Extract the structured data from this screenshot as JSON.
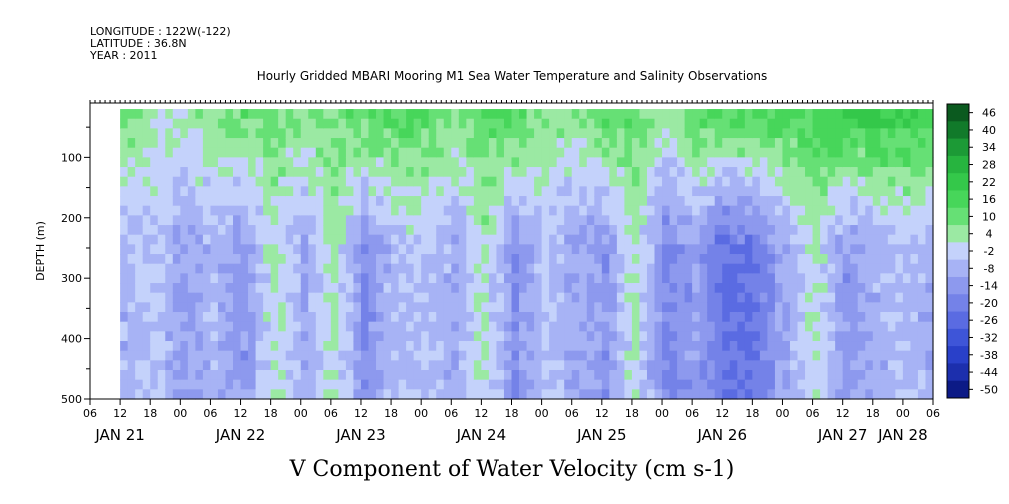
{
  "header": {
    "longitude": "LONGITUDE : 122W(-122)",
    "latitude": "LATITUDE : 36.8N",
    "year": "YEAR : 2011"
  },
  "chart_data": {
    "type": "heatmap",
    "title": "Hourly Gridded MBARI Mooring M1 Sea Water Temperature and Salinity Observations",
    "xlabel": "V Component of Water Velocity (cm s-1)",
    "ylabel": "DEPTH (m)",
    "y_reversed": true,
    "ylim": [
      500,
      10
    ],
    "y_ticks": [
      "100",
      "200",
      "300",
      "400",
      "500"
    ],
    "y_tick_values": [
      100,
      200,
      300,
      400,
      500
    ],
    "x_range_hours_from_jan21_00": [
      6,
      174
    ],
    "hour_ticks": [
      "06",
      "12",
      "18",
      "00",
      "06",
      "12",
      "18",
      "00",
      "06",
      "12",
      "18",
      "00",
      "06",
      "12",
      "18",
      "00",
      "06",
      "12",
      "18",
      "00",
      "06",
      "12",
      "18",
      "00",
      "06",
      "12",
      "18",
      "00",
      "06"
    ],
    "date_labels": [
      "JAN 21",
      "JAN 22",
      "JAN 23",
      "JAN 24",
      "JAN 25",
      "JAN 26",
      "JAN 27",
      "JAN 28"
    ],
    "data_start_hour": 12,
    "data_end_hour": 174,
    "data_depth_range": [
      20,
      488
    ],
    "colorbar": {
      "labels": [
        "46",
        "40",
        "34",
        "28",
        "22",
        "16",
        "10",
        "4",
        "-2",
        "-8",
        "-14",
        "-20",
        "-26",
        "-32",
        "-38",
        "-44",
        "-50"
      ],
      "values": [
        46,
        40,
        34,
        28,
        22,
        16,
        10,
        4,
        -2,
        -8,
        -14,
        -20,
        -26,
        -32,
        -38,
        -44,
        -50
      ],
      "colors": [
        "#0b5a1f",
        "#117a2a",
        "#1c9a36",
        "#27b43f",
        "#34c84a",
        "#47d65a",
        "#66e075",
        "#9be9a3",
        "#c4d2fb",
        "#a7b3f5",
        "#8d99ee",
        "#7482e8",
        "#5a6be2",
        "#3e55d8",
        "#2940c9",
        "#1c2fad",
        "#0c1a86"
      ]
    },
    "column_profile_sample_hours": [
      12,
      18,
      24,
      30,
      36,
      42,
      48,
      54,
      60,
      66,
      72,
      78,
      84,
      90,
      96,
      102,
      108,
      114,
      120,
      126,
      132,
      138,
      144,
      150,
      156,
      162,
      168,
      174
    ],
    "surface_v_cm_s": [
      8,
      4,
      2,
      6,
      10,
      8,
      6,
      10,
      12,
      14,
      12,
      8,
      12,
      14,
      6,
      4,
      12,
      10,
      2,
      12,
      14,
      16,
      14,
      16,
      18,
      20,
      18,
      14
    ],
    "mid_v_cm_s": [
      -8,
      -4,
      -12,
      -6,
      -14,
      2,
      -10,
      2,
      -16,
      -6,
      -4,
      -10,
      2,
      -16,
      -4,
      -10,
      -14,
      2,
      -18,
      -12,
      -24,
      -22,
      -10,
      2,
      -14,
      -8,
      -6,
      -10
    ]
  }
}
